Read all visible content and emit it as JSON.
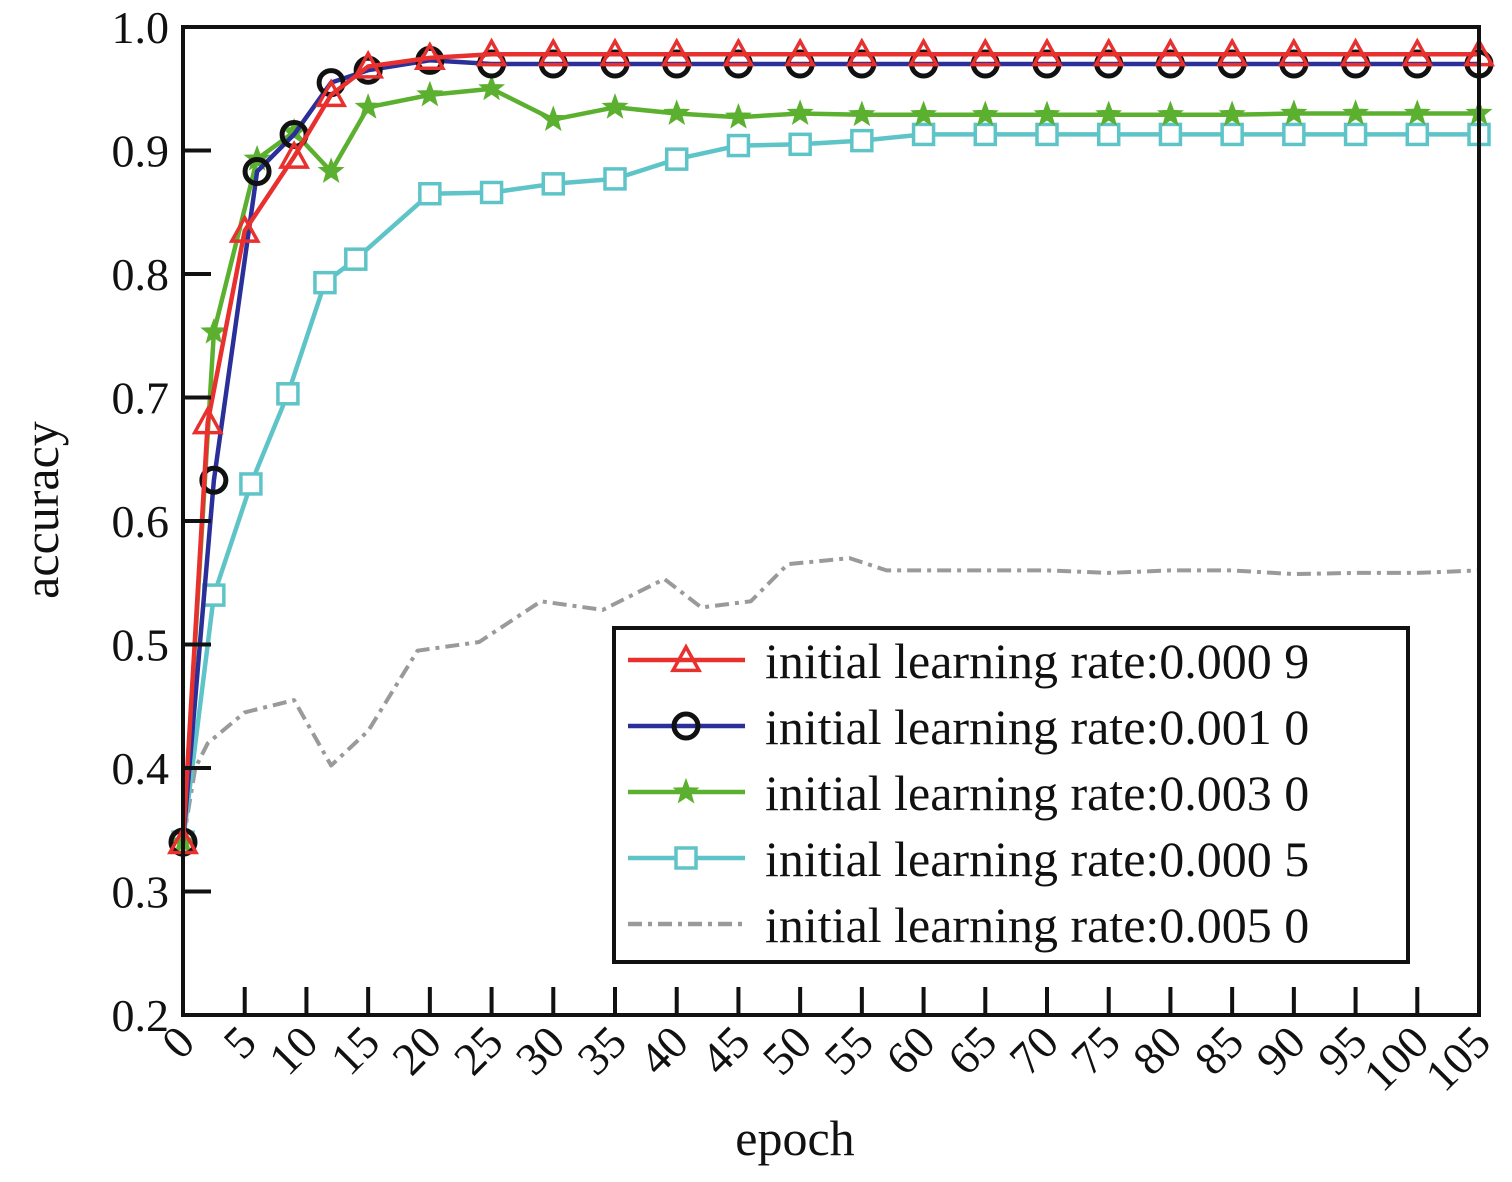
{
  "chart_data": {
    "type": "line",
    "title": "",
    "xlabel": "epoch",
    "ylabel": "accuracy",
    "xlim": [
      0,
      105
    ],
    "ylim": [
      0.2,
      1.0
    ],
    "grid": false,
    "legend_position": "bottom-right",
    "x_ticks": [
      "0",
      "5",
      "10",
      "15",
      "20",
      "25",
      "30",
      "35",
      "40",
      "45",
      "50",
      "55",
      "60",
      "65",
      "70",
      "75",
      "80",
      "85",
      "90",
      "95",
      "100",
      "105"
    ],
    "y_ticks": [
      "0.2",
      "0.3",
      "0.4",
      "0.5",
      "0.6",
      "0.7",
      "0.8",
      "0.9",
      "1.0"
    ],
    "series": [
      {
        "name": "initial learning rate:0.000 9",
        "color": "#e8302e",
        "marker": "triangle",
        "x": [
          0,
          2,
          5,
          9,
          12,
          15,
          20,
          25,
          30,
          35,
          40,
          45,
          50,
          55,
          60,
          65,
          70,
          75,
          80,
          85,
          90,
          95,
          100,
          105
        ],
        "y": [
          0.34,
          0.68,
          0.835,
          0.895,
          0.945,
          0.968,
          0.975,
          0.978,
          0.978,
          0.978,
          0.978,
          0.978,
          0.978,
          0.978,
          0.978,
          0.978,
          0.978,
          0.978,
          0.978,
          0.978,
          0.978,
          0.978,
          0.978,
          0.978
        ]
      },
      {
        "name": "initial learning rate:0.001 0",
        "color": "#2a2f9a",
        "marker": "circle",
        "x": [
          0,
          2.5,
          6,
          9,
          12,
          15,
          20,
          25,
          30,
          35,
          40,
          45,
          50,
          55,
          60,
          65,
          70,
          75,
          80,
          85,
          90,
          95,
          100,
          105
        ],
        "y": [
          0.34,
          0.633,
          0.883,
          0.913,
          0.955,
          0.965,
          0.973,
          0.97,
          0.97,
          0.97,
          0.97,
          0.97,
          0.97,
          0.97,
          0.97,
          0.97,
          0.97,
          0.97,
          0.97,
          0.97,
          0.97,
          0.97,
          0.97,
          0.97
        ]
      },
      {
        "name": "initial learning rate:0.003 0",
        "color": "#5cb030",
        "marker": "star",
        "x": [
          0,
          2.5,
          6,
          9,
          12,
          15,
          20,
          25,
          30,
          35,
          40,
          45,
          50,
          55,
          60,
          65,
          70,
          75,
          80,
          85,
          90,
          95,
          100,
          105
        ],
        "y": [
          0.34,
          0.753,
          0.893,
          0.915,
          0.883,
          0.935,
          0.945,
          0.95,
          0.925,
          0.935,
          0.93,
          0.927,
          0.93,
          0.929,
          0.929,
          0.929,
          0.929,
          0.929,
          0.929,
          0.929,
          0.93,
          0.93,
          0.93,
          0.93
        ]
      },
      {
        "name": "initial learning rate:0.000 5",
        "color": "#5ec4c8",
        "marker": "square",
        "x": [
          0,
          2.5,
          5.5,
          8.5,
          11.5,
          14,
          20,
          25,
          30,
          35,
          40,
          45,
          50,
          55,
          60,
          65,
          70,
          75,
          80,
          85,
          90,
          95,
          100,
          105
        ],
        "y": [
          0.34,
          0.54,
          0.63,
          0.703,
          0.793,
          0.812,
          0.865,
          0.866,
          0.873,
          0.877,
          0.893,
          0.904,
          0.905,
          0.908,
          0.913,
          0.913,
          0.913,
          0.913,
          0.913,
          0.913,
          0.913,
          0.913,
          0.913,
          0.913
        ]
      },
      {
        "name": "initial learning rate:0.005 0",
        "color": "#9a9a9a",
        "marker": "none",
        "dash": "dashdot",
        "x": [
          0,
          1,
          2,
          5,
          9,
          12,
          15,
          19,
          24,
          29,
          34,
          39,
          42,
          46,
          49,
          54,
          57,
          60,
          65,
          70,
          75,
          80,
          85,
          90,
          95,
          100,
          105
        ],
        "y": [
          0.34,
          0.4,
          0.42,
          0.445,
          0.455,
          0.402,
          0.43,
          0.495,
          0.502,
          0.535,
          0.528,
          0.553,
          0.53,
          0.535,
          0.565,
          0.57,
          0.56,
          0.56,
          0.56,
          0.56,
          0.558,
          0.56,
          0.56,
          0.557,
          0.558,
          0.558,
          0.56
        ]
      }
    ]
  }
}
